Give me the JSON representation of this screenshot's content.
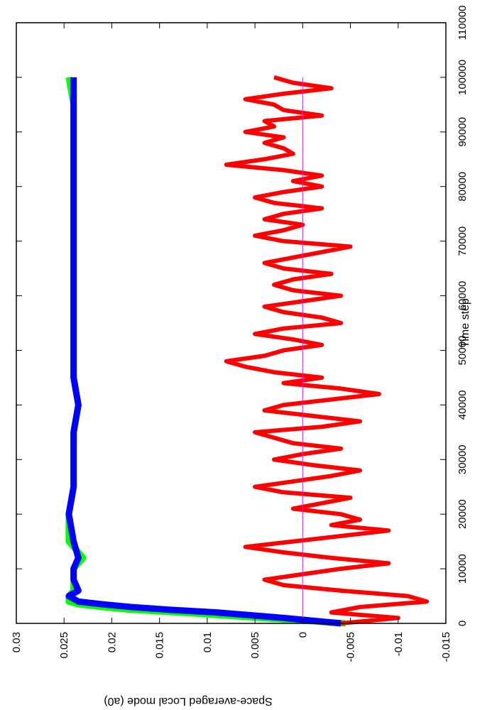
{
  "chart_data": {
    "type": "line",
    "orientation": "rotated-90-clockwise",
    "title": "",
    "xlabel": "Time step",
    "ylabel": "Space-averaged Local mode (a0)",
    "xlim": [
      0,
      110000
    ],
    "ylim": [
      -0.015,
      0.03
    ],
    "x_ticks": [
      0,
      10000,
      20000,
      30000,
      40000,
      50000,
      60000,
      70000,
      80000,
      90000,
      100000,
      110000
    ],
    "x_tick_labels": [
      "0",
      "10000",
      "20000",
      "30000",
      "40000",
      "50000",
      "60000",
      "70000",
      "80000",
      "90000",
      "100000",
      "110000"
    ],
    "y_ticks": [
      -0.015,
      -0.01,
      -0.005,
      0,
      0.005,
      0.01,
      0.015,
      0.02,
      0.025,
      0.03
    ],
    "y_tick_labels": [
      "-0.015",
      "-0.01",
      "-0.005",
      "0",
      "0.005",
      "0.01",
      "0.015",
      "0.02",
      "0.025",
      "0.03"
    ],
    "grid": false,
    "legend": "none",
    "zero_line_color": "#ff00ff",
    "series": [
      {
        "color": "#00ff00",
        "x": [
          0,
          1000,
          2000,
          2500,
          3000,
          3500,
          4000,
          5000,
          6000,
          8000,
          10000,
          12000,
          15000,
          20000,
          25000,
          30000,
          35000,
          40000,
          45000,
          50000,
          55000,
          60000,
          65000,
          70000,
          75000,
          80000,
          85000,
          90000,
          95000,
          100000
        ],
        "y": [
          -0.0045,
          0.0045,
          0.013,
          0.018,
          0.021,
          0.0235,
          0.0245,
          0.0245,
          0.024,
          0.024,
          0.024,
          0.023,
          0.0245,
          0.0245,
          0.024,
          0.024,
          0.024,
          0.0235,
          0.024,
          0.024,
          0.024,
          0.024,
          0.024,
          0.024,
          0.024,
          0.024,
          0.024,
          0.024,
          0.024,
          0.0245
        ]
      },
      {
        "color": "#0000ff",
        "x": [
          0,
          1000,
          2000,
          2500,
          3000,
          3500,
          4000,
          5000,
          6000,
          8000,
          10000,
          12000,
          15000,
          20000,
          25000,
          30000,
          35000,
          40000,
          45000,
          50000,
          55000,
          60000,
          65000,
          70000,
          75000,
          80000,
          85000,
          90000,
          95000,
          100000
        ],
        "y": [
          -0.004,
          0.002,
          0.009,
          0.014,
          0.018,
          0.021,
          0.0235,
          0.0245,
          0.0235,
          0.024,
          0.024,
          0.0235,
          0.024,
          0.0245,
          0.024,
          0.024,
          0.024,
          0.0235,
          0.024,
          0.024,
          0.024,
          0.024,
          0.024,
          0.024,
          0.024,
          0.024,
          0.024,
          0.024,
          0.024,
          0.024
        ]
      },
      {
        "color": "#ff0000",
        "x": [
          0,
          1000,
          2000,
          3000,
          4000,
          5000,
          6000,
          7000,
          8000,
          9000,
          10000,
          11000,
          12000,
          13000,
          14000,
          15000,
          16000,
          17000,
          18000,
          19000,
          20000,
          21000,
          22000,
          23000,
          24000,
          25000,
          26000,
          27000,
          28000,
          29000,
          30000,
          31000,
          32000,
          33000,
          34000,
          35000,
          36000,
          37000,
          38000,
          39000,
          40000,
          41000,
          42000,
          43000,
          44000,
          45000,
          46000,
          47000,
          48000,
          49000,
          50000,
          51000,
          52000,
          53000,
          54000,
          55000,
          56000,
          57000,
          58000,
          59000,
          60000,
          61000,
          62000,
          63000,
          64000,
          65000,
          66000,
          67000,
          68000,
          69000,
          70000,
          71000,
          72000,
          73000,
          74000,
          75000,
          76000,
          77000,
          78000,
          79000,
          80000,
          81000,
          82000,
          83000,
          84000,
          85000,
          86000,
          87000,
          88000,
          89000,
          90000,
          91000,
          92000,
          93000,
          94000,
          95000,
          96000,
          97000,
          98000,
          99000,
          100000
        ],
        "y": [
          -0.004,
          -0.01,
          -0.003,
          -0.006,
          -0.013,
          -0.011,
          -0.004,
          0.002,
          0.004,
          0.0,
          -0.004,
          -0.009,
          -0.003,
          0.002,
          0.006,
          0.001,
          -0.004,
          -0.009,
          -0.003,
          -0.006,
          -0.004,
          0.001,
          -0.002,
          -0.005,
          0.002,
          0.005,
          0.001,
          -0.003,
          -0.006,
          -0.001,
          0.003,
          0.0,
          -0.004,
          0.001,
          0.003,
          0.005,
          -0.002,
          -0.006,
          -0.001,
          0.004,
          0.002,
          -0.003,
          -0.008,
          -0.004,
          0.002,
          -0.002,
          0.003,
          0.006,
          0.008,
          0.004,
          0.002,
          -0.002,
          0.001,
          0.005,
          0.002,
          -0.004,
          -0.002,
          0.002,
          0.004,
          0.0,
          -0.004,
          0.001,
          0.003,
          0.001,
          -0.003,
          0.002,
          0.004,
          0.001,
          -0.002,
          -0.005,
          0.002,
          0.005,
          0.002,
          0.0,
          0.004,
          0.002,
          -0.002,
          0.003,
          0.005,
          0.002,
          -0.002,
          0.001,
          -0.002,
          0.002,
          0.008,
          0.004,
          0.001,
          0.002,
          0.004,
          0.002,
          0.006,
          0.003,
          0.004,
          -0.002,
          0.002,
          0.003,
          0.006,
          0.002,
          -0.003,
          0.001,
          0.003
        ]
      }
    ]
  }
}
